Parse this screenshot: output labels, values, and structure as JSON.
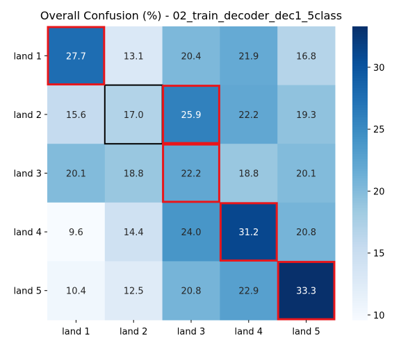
{
  "chart_data": {
    "type": "heatmap",
    "title": "Overall Confusion (%) - 02_train_decoder_dec1_5class",
    "xlabel": "",
    "ylabel": "",
    "x_categories": [
      "land 1",
      "land 2",
      "land 3",
      "land 4",
      "land 5"
    ],
    "y_categories": [
      "land 1",
      "land 2",
      "land 3",
      "land 4",
      "land 5"
    ],
    "values": [
      [
        27.7,
        13.1,
        20.4,
        21.9,
        16.8
      ],
      [
        15.6,
        17.0,
        25.9,
        22.2,
        19.3
      ],
      [
        20.1,
        18.8,
        22.2,
        18.8,
        20.1
      ],
      [
        9.6,
        14.4,
        24.0,
        31.2,
        20.8
      ],
      [
        10.4,
        12.5,
        20.8,
        22.9,
        33.3
      ]
    ],
    "colormap": "Blues",
    "vmin": 9.6,
    "vmax": 33.3,
    "colorbar_ticks": [
      10,
      15,
      20,
      25,
      30
    ],
    "highlight_red": [
      [
        0,
        0
      ],
      [
        1,
        2
      ],
      [
        2,
        2
      ],
      [
        3,
        3
      ],
      [
        4,
        4
      ]
    ],
    "highlight_black": [
      [
        1,
        1
      ]
    ],
    "colors": {
      "red_outline": "#e8161b",
      "black_outline": "#000000"
    },
    "grid": false,
    "legend": "none"
  }
}
